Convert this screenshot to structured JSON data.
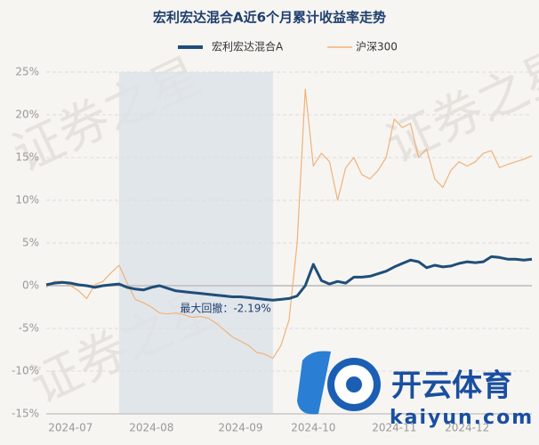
{
  "chart_data": {
    "type": "line",
    "title": "宏利宏达混合A近6个月累计收益率走势",
    "categories": [
      null,
      null,
      null,
      "2024-07",
      null,
      null,
      null,
      null,
      null,
      null,
      null,
      null,
      null,
      "2024-08",
      null,
      null,
      null,
      null,
      null,
      null,
      null,
      null,
      null,
      null,
      "2024-09",
      null,
      null,
      null,
      null,
      null,
      null,
      null,
      null,
      "2024-10",
      null,
      null,
      null,
      null,
      null,
      null,
      null,
      null,
      null,
      "2024-11",
      null,
      null,
      null,
      null,
      null,
      null,
      null,
      null,
      "2024-12",
      null,
      null,
      null,
      null,
      null,
      null,
      null,
      null
    ],
    "series": [
      {
        "name": "宏利宏达混合A",
        "color": "#1f4e79",
        "values": [
          0.1,
          0.3,
          0.4,
          0.3,
          0.1,
          0.0,
          -0.2,
          0.0,
          0.1,
          0.2,
          -0.2,
          -0.4,
          -0.5,
          -0.2,
          0.0,
          -0.3,
          -0.6,
          -0.7,
          -0.8,
          -0.9,
          -1.0,
          -1.1,
          -1.2,
          -1.3,
          -1.3,
          -1.4,
          -1.5,
          -1.6,
          -1.7,
          -1.6,
          -1.5,
          -1.2,
          0.0,
          2.5,
          0.6,
          0.2,
          0.5,
          0.3,
          1.0,
          1.0,
          1.1,
          1.4,
          1.7,
          2.2,
          2.6,
          3.0,
          2.8,
          2.1,
          2.4,
          2.2,
          2.3,
          2.6,
          2.8,
          2.7,
          2.8,
          3.4,
          3.3,
          3.1,
          3.1,
          3.0,
          3.1
        ]
      },
      {
        "name": "沪深300",
        "color": "#f0b27a",
        "values": [
          -0.2,
          0.5,
          0.5,
          0.0,
          -0.6,
          -1.5,
          0.1,
          0.5,
          1.5,
          2.4,
          0.3,
          -1.6,
          -2.0,
          -2.5,
          -3.2,
          -3.3,
          -3.2,
          -3.4,
          -3.7,
          -3.6,
          -3.8,
          -4.4,
          -5.2,
          -6.0,
          -6.5,
          -7.0,
          -7.8,
          -8.0,
          -8.5,
          -7.0,
          -4.0,
          5.0,
          23.0,
          14.0,
          15.5,
          14.5,
          10.0,
          13.8,
          15.0,
          13.0,
          12.5,
          13.5,
          15.0,
          19.5,
          18.5,
          19.0,
          15.0,
          16.0,
          12.5,
          11.5,
          13.5,
          14.5,
          14.0,
          14.5,
          15.5,
          15.8,
          13.8,
          14.2,
          14.5,
          14.8,
          15.2
        ]
      }
    ],
    "ylim": [
      -15,
      25
    ],
    "yticks": [
      {
        "value": -15,
        "label": "-15%"
      },
      {
        "value": -10,
        "label": "-10%"
      },
      {
        "value": -5,
        "label": "-5%"
      },
      {
        "value": 0,
        "label": "0%"
      },
      {
        "value": 5,
        "label": "5%"
      },
      {
        "value": 10,
        "label": "10%"
      },
      {
        "value": 15,
        "label": "15%"
      },
      {
        "value": 20,
        "label": "20%"
      },
      {
        "value": 25,
        "label": "25%"
      }
    ],
    "grid": true,
    "legend": "top",
    "drawdown": {
      "label": "最大回撤：-2.19%",
      "from": 9,
      "to": 28
    }
  },
  "watermark": "证券之星",
  "logo": {
    "name": "开云体育",
    "url": "kaiyun.com"
  }
}
